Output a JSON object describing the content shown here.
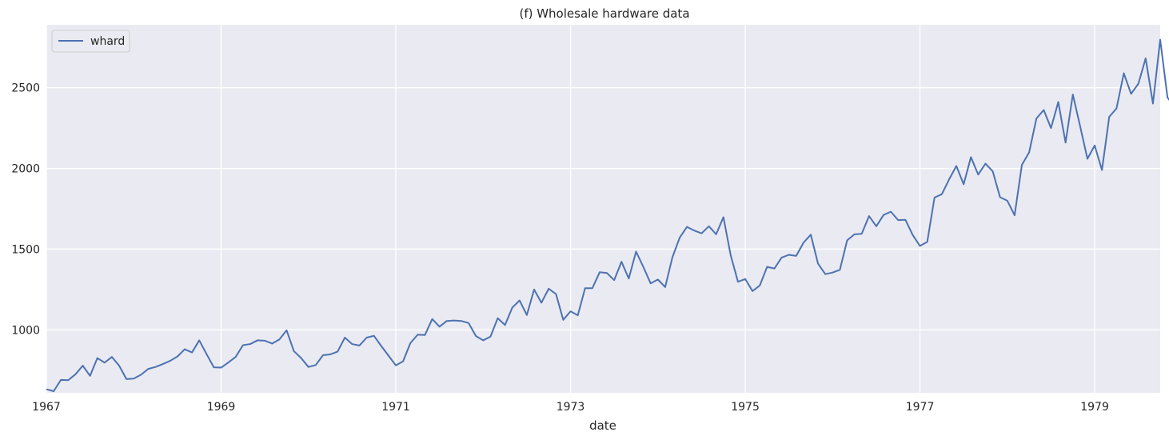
{
  "chart_data": {
    "type": "line",
    "title": "(f) Wholesale hardware data",
    "xlabel": "date",
    "ylabel": "",
    "x_start": "1967-01",
    "x_end": "1979-10",
    "frequency": "monthly",
    "xlim": [
      "1967-01",
      "1979-10"
    ],
    "ylim": [
      610,
      2890
    ],
    "x_ticks": [
      "1967",
      "1969",
      "1971",
      "1973",
      "1975",
      "1977",
      "1979"
    ],
    "y_ticks": [
      1000,
      1500,
      2000,
      2500
    ],
    "grid": true,
    "legend_position": "top-left",
    "background_color": "#eaeaf2",
    "grid_color": "#ffffff",
    "series": [
      {
        "name": "whard",
        "color": "#4c72b0",
        "values": [
          632,
          620,
          690,
          688,
          725,
          778,
          715,
          825,
          797,
          832,
          778,
          695,
          698,
          722,
          758,
          770,
          788,
          808,
          835,
          880,
          860,
          935,
          850,
          768,
          766,
          798,
          832,
          905,
          912,
          935,
          933,
          915,
          940,
          997,
          868,
          825,
          770,
          782,
          843,
          848,
          865,
          952,
          912,
          903,
          952,
          963,
          900,
          840,
          780,
          805,
          918,
          970,
          968,
          1067,
          1020,
          1055,
          1058,
          1055,
          1042,
          962,
          935,
          958,
          1072,
          1030,
          1138,
          1182,
          1092,
          1250,
          1168,
          1255,
          1222,
          1062,
          1115,
          1090,
          1258,
          1258,
          1357,
          1352,
          1308,
          1422,
          1318,
          1485,
          1390,
          1288,
          1312,
          1265,
          1450,
          1572,
          1638,
          1615,
          1598,
          1642,
          1592,
          1698,
          1462,
          1298,
          1315,
          1240,
          1275,
          1390,
          1380,
          1448,
          1465,
          1458,
          1540,
          1590,
          1410,
          1345,
          1355,
          1372,
          1555,
          1592,
          1595,
          1705,
          1642,
          1712,
          1732,
          1680,
          1682,
          1588,
          1520,
          1545,
          1820,
          1840,
          1932,
          2015,
          1902,
          2070,
          1962,
          2030,
          1982,
          1822,
          1800,
          1710,
          2022,
          2100,
          2310,
          2362,
          2250,
          2412,
          2160,
          2458,
          2262,
          2060,
          2142,
          1990,
          2320,
          2372,
          2590,
          2462,
          2525,
          2682,
          2402,
          2798,
          2440,
          2380
        ]
      }
    ]
  }
}
